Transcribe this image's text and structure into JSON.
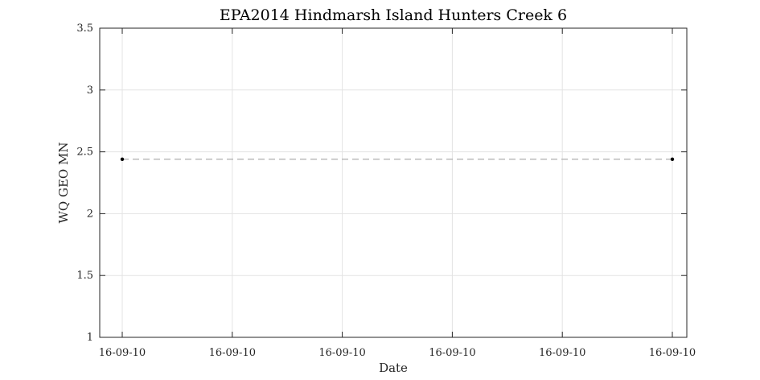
{
  "chart_data": {
    "type": "line",
    "title": "EPA2014 Hindmarsh Island Hunters Creek 6",
    "xlabel": "Date",
    "ylabel": "WQ GEO MN",
    "ylim": [
      1,
      3.5
    ],
    "y_ticks": [
      "1",
      "1.5",
      "2",
      "2.5",
      "3",
      "3.5"
    ],
    "x_ticks": [
      "16-09-10",
      "16-09-10",
      "16-09-10",
      "16-09-10",
      "16-09-10",
      "16-09-10"
    ],
    "grid": true,
    "series": [
      {
        "x": [
          "16-09-10",
          "16-09-10"
        ],
        "values": [
          2.44,
          2.44
        ],
        "marker_color": "#000000",
        "line_color": "#a6a6a6",
        "line_style": "dashed"
      }
    ]
  }
}
